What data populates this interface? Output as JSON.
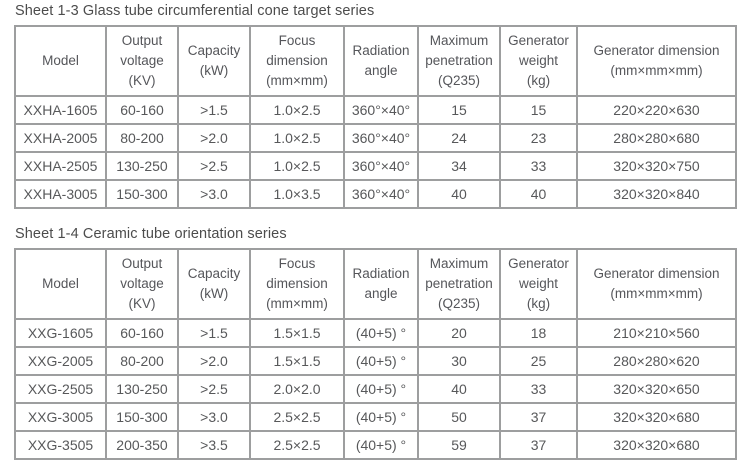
{
  "page": {
    "background": "#ffffff",
    "text_color": "#57585a",
    "border_color": "#9d9e9f"
  },
  "tables": [
    {
      "title": "Sheet 1-3 Glass tube circumferential cone target series",
      "headers": [
        "Model",
        "Output\nvoltage\n(KV)",
        "Capacity\n(kW)",
        "Focus\ndimension\n(mm×mm)",
        "Radiation\nangle",
        "Maximum\npenetration\n(Q235)",
        "Generator\nweight\n(kg)",
        "Generator dimension\n(mm×mm×mm)"
      ],
      "rows": [
        [
          "XXHA-1605",
          "60-160",
          ">1.5",
          "1.0×2.5",
          "360°×40°",
          "15",
          "15",
          "220×220×630"
        ],
        [
          "XXHA-2005",
          "80-200",
          ">2.0",
          "1.0×2.5",
          "360°×40°",
          "24",
          "23",
          "280×280×680"
        ],
        [
          "XXHA-2505",
          "130-250",
          ">2.5",
          "1.0×2.5",
          "360°×40°",
          "34",
          "33",
          "320×320×750"
        ],
        [
          "XXHA-3005",
          "150-300",
          ">3.0",
          "1.0×3.5",
          "360°×40°",
          "40",
          "40",
          "320×320×840"
        ]
      ]
    },
    {
      "title": "Sheet 1-4 Ceramic tube orientation series",
      "headers": [
        "Model",
        "Output\nvoltage\n(KV)",
        "Capacity\n(kW)",
        "Focus\ndimension\n(mm×mm)",
        "Radiation\nangle",
        "Maximum\npenetration\n(Q235)",
        "Generator\nweight\n(kg)",
        "Generator dimension\n(mm×mm×mm)"
      ],
      "rows": [
        [
          "XXG-1605",
          "60-160",
          ">1.5",
          "1.5×1.5",
          "(40+5) °",
          "20",
          "18",
          "210×210×560"
        ],
        [
          "XXG-2005",
          "80-200",
          ">2.0",
          "1.5×1.5",
          "(40+5) °",
          "30",
          "25",
          "280×280×620"
        ],
        [
          "XXG-2505",
          "130-250",
          ">2.5",
          "2.0×2.0",
          "(40+5) °",
          "40",
          "33",
          "320×320×650"
        ],
        [
          "XXG-3005",
          "150-300",
          ">3.0",
          "2.5×2.5",
          "(40+5) °",
          "50",
          "37",
          "320×320×680"
        ],
        [
          "XXG-3505",
          "200-350",
          ">3.5",
          "2.5×2.5",
          "(40+5) °",
          "59",
          "37",
          "320×320×680"
        ]
      ]
    }
  ]
}
